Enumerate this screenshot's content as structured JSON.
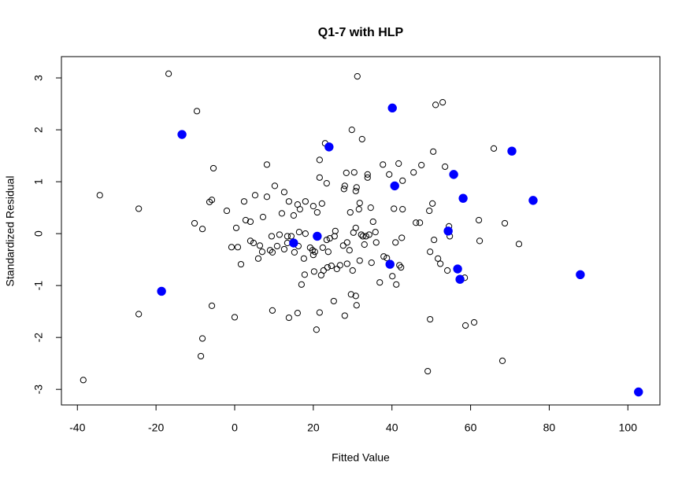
{
  "chart_data": {
    "type": "scatter",
    "title": "Q1-7 with HLP",
    "x_label": "Fitted Value",
    "y_label": "Standardized Residual",
    "xlim": [
      -44.06,
      108.15
    ],
    "ylim": [
      -3.3,
      3.41
    ],
    "xticks": [
      -40,
      -20,
      0,
      20,
      40,
      60,
      80,
      100
    ],
    "yticks": [
      -3,
      -2,
      -1,
      0,
      1,
      2,
      3
    ],
    "grid": false,
    "series": [
      {
        "color": "#000000",
        "filled": false,
        "x": [
          -38.5,
          -34.3,
          -24.4,
          -24.4,
          -16.8,
          -9.6,
          -10.2,
          -8.2,
          -8.2,
          -8.6,
          -5.4,
          -5.8,
          -6.4,
          -5.8,
          -2.0,
          -0.8,
          0.4,
          0.8,
          0,
          1.6,
          2.4,
          2.8,
          4.0,
          4.0,
          4.8,
          5.2,
          6.4,
          6.0,
          7.0,
          7.2,
          8.2,
          8.2,
          9.0,
          9.6,
          9.4,
          10.2,
          10.8,
          9.6,
          11.4,
          12.0,
          12.6,
          12.6,
          13.4,
          13.4,
          13.8,
          13.8,
          14.4,
          15.0,
          15.2,
          16.0,
          16.0,
          16.2,
          16.4,
          16.6,
          17.0,
          17.6,
          17.8,
          18.0,
          18.0,
          19.2,
          19.8,
          20.0,
          20.0,
          20.2,
          20.4,
          20.8,
          21.0,
          21.6,
          21.6,
          21.6,
          22.0,
          22.2,
          22.4,
          22.6,
          23.0,
          23.4,
          23.4,
          23.6,
          23.8,
          24.2,
          24.6,
          25.2,
          25.4,
          25.6,
          26.0,
          26.8,
          27.6,
          27.8,
          28.0,
          28.0,
          28.4,
          28.6,
          28.6,
          29.2,
          29.4,
          29.6,
          29.8,
          30.0,
          30.2,
          30.4,
          30.8,
          30.8,
          30.8,
          31.0,
          31.0,
          31.2,
          31.6,
          31.8,
          31.8,
          32.2,
          32.4,
          32.6,
          33.0,
          33.4,
          33.8,
          33.8,
          34.2,
          34.6,
          34.8,
          35.2,
          35.8,
          36.0,
          36.9,
          37.7,
          37.9,
          38.7,
          39.3,
          40.1,
          40.5,
          40.9,
          41.1,
          41.7,
          41.9,
          42.3,
          42.5,
          42.7,
          42.7,
          45.5,
          46.1,
          47.1,
          47.5,
          49.1,
          49.5,
          49.7,
          49.7,
          50.3,
          50.5,
          50.7,
          51.1,
          51.7,
          52.3,
          52.9,
          53.5,
          54.1,
          54.5,
          54.7,
          58.5,
          58.7,
          60.9,
          62.1,
          62.3,
          65.9,
          68.1,
          68.7,
          72.3
        ],
        "y": [
          -2.82,
          0.74,
          0.48,
          -1.55,
          3.08,
          2.36,
          0.2,
          0.09,
          -2.02,
          -2.36,
          1.26,
          0.65,
          0.61,
          -1.39,
          0.44,
          -0.26,
          0.11,
          -0.26,
          -1.61,
          -0.59,
          0.62,
          0.26,
          0.23,
          -0.14,
          -0.18,
          0.74,
          -0.23,
          -0.48,
          -0.35,
          0.32,
          1.33,
          0.71,
          -0.32,
          -0.36,
          -0.05,
          0.92,
          -0.24,
          -1.48,
          -0.02,
          0.39,
          0.8,
          -0.3,
          -0.18,
          -0.05,
          0.62,
          -1.62,
          -0.05,
          0.35,
          -0.36,
          -1.53,
          0.56,
          -0.24,
          0.03,
          0.47,
          -0.98,
          -0.48,
          -0.79,
          0.0,
          0.62,
          -0.27,
          -0.32,
          -0.41,
          0.53,
          -0.73,
          -0.35,
          -1.85,
          0.41,
          1.42,
          1.08,
          -1.52,
          -0.8,
          0.58,
          -0.27,
          -0.71,
          1.74,
          -0.12,
          0.97,
          -0.65,
          -0.35,
          -0.09,
          -0.62,
          -1.3,
          -0.05,
          0.05,
          -0.68,
          -0.61,
          -0.23,
          0.86,
          -1.58,
          0.92,
          1.17,
          -0.17,
          -0.58,
          -0.32,
          0.41,
          -1.17,
          2.0,
          -0.71,
          0.02,
          1.18,
          0.82,
          0.11,
          -1.2,
          0.89,
          -1.38,
          3.03,
          0.47,
          0.59,
          -0.52,
          -0.02,
          1.82,
          -0.05,
          -0.21,
          -0.05,
          1.14,
          1.08,
          -0.02,
          0.5,
          -0.56,
          0.23,
          0.03,
          -0.17,
          -0.94,
          1.33,
          -0.44,
          -0.47,
          1.14,
          -0.82,
          0.48,
          -0.17,
          -0.98,
          1.35,
          -0.61,
          -0.65,
          -0.08,
          1.02,
          0.47,
          1.18,
          0.21,
          0.21,
          1.32,
          -2.65,
          0.44,
          -1.65,
          -0.35,
          0.58,
          1.58,
          -0.12,
          2.48,
          -0.48,
          -0.58,
          2.53,
          1.29,
          -0.71,
          0.14,
          -0.05,
          -0.85,
          -1.77,
          -1.71,
          0.26,
          -0.14,
          1.64,
          -2.45,
          0.2,
          -0.2
        ]
      },
      {
        "color": "#0000ff",
        "filled": true,
        "x": [
          -13.4,
          -18.6,
          24.0,
          40.1,
          40.7,
          21.0,
          15.0,
          39.5,
          55.7,
          58.1,
          54.3,
          56.7,
          57.3,
          70.5,
          75.9,
          87.9,
          102.7
        ],
        "y": [
          1.91,
          -1.11,
          1.67,
          2.42,
          0.92,
          -0.05,
          -0.18,
          -0.59,
          1.14,
          0.68,
          0.05,
          -0.68,
          -0.88,
          1.59,
          0.64,
          -0.79,
          -3.05
        ]
      }
    ]
  }
}
